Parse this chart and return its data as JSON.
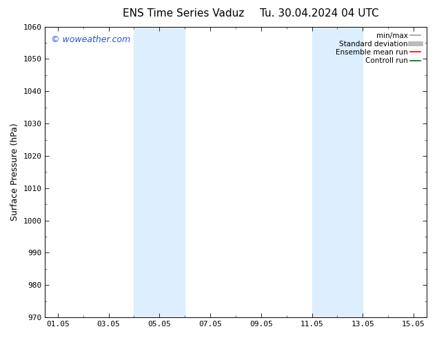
{
  "title": "ENS Time Series Vaduz",
  "title2": "Tu. 30.04.2024 04 UTC",
  "ylabel": "Surface Pressure (hPa)",
  "ylim": [
    970,
    1060
  ],
  "yticks": [
    970,
    980,
    990,
    1000,
    1010,
    1020,
    1030,
    1040,
    1050,
    1060
  ],
  "xlim": [
    -0.5,
    14.5
  ],
  "xtick_labels": [
    "01.05",
    "03.05",
    "05.05",
    "07.05",
    "09.05",
    "11.05",
    "13.05",
    "15.05"
  ],
  "xtick_positions": [
    0,
    2,
    4,
    6,
    8,
    10,
    12,
    14
  ],
  "shaded_bands": [
    {
      "x_start": 3.0,
      "x_end": 5.0,
      "color": "#ddeeff"
    },
    {
      "x_start": 10.0,
      "x_end": 12.0,
      "color": "#ddeeff"
    }
  ],
  "watermark": "© woweather.com",
  "watermark_color": "#2255cc",
  "watermark_fontsize": 9,
  "background_color": "#ffffff",
  "legend_items": [
    {
      "label": "min/max",
      "color": "#999999",
      "lw": 1.2,
      "style": "solid"
    },
    {
      "label": "Standard deviation",
      "color": "#bbbbbb",
      "lw": 5,
      "style": "solid"
    },
    {
      "label": "Ensemble mean run",
      "color": "#ff0000",
      "lw": 1.2,
      "style": "solid"
    },
    {
      "label": "Controll run",
      "color": "#006600",
      "lw": 1.2,
      "style": "solid"
    }
  ],
  "title_fontsize": 11,
  "tick_fontsize": 8,
  "axis_label_fontsize": 9,
  "legend_fontsize": 7.5
}
